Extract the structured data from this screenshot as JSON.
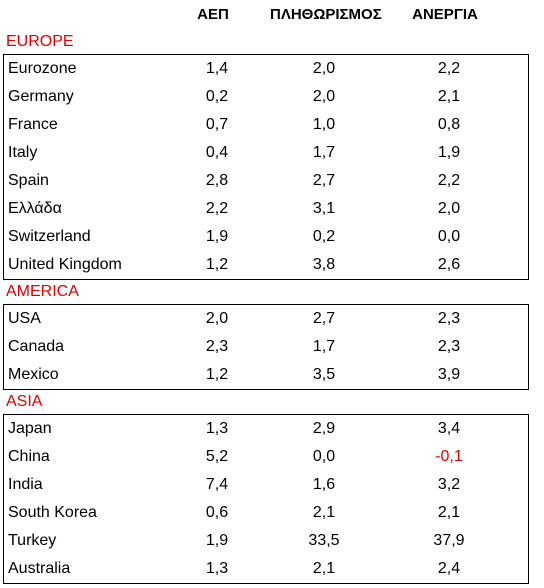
{
  "columns": [
    "ΑΕΠ",
    "ΠΛΗΘΩΡΙΣΜΟΣ",
    "ΑΝΕΡΓΙΑ"
  ],
  "colors": {
    "region_label": "#e30000",
    "negative_value": "#e30000",
    "text": "#000000",
    "border": "#000000"
  },
  "groups": [
    {
      "region": "EUROPE",
      "rows": [
        {
          "name": "Eurozone",
          "values": [
            "1,4",
            "2,0",
            "2,2"
          ]
        },
        {
          "name": "Germany",
          "values": [
            "0,2",
            "2,0",
            "2,1"
          ]
        },
        {
          "name": "France",
          "values": [
            "0,7",
            "1,0",
            "0,8"
          ]
        },
        {
          "name": "Italy",
          "values": [
            "0,4",
            "1,7",
            "1,9"
          ]
        },
        {
          "name": "Spain",
          "values": [
            "2,8",
            "2,7",
            "2,2"
          ]
        },
        {
          "name": "Ελλάδα",
          "values": [
            "2,2",
            "3,1",
            "2,0"
          ]
        },
        {
          "name": "Switzerland",
          "values": [
            "1,9",
            "0,2",
            "0,0"
          ]
        },
        {
          "name": "United Kingdom",
          "values": [
            "1,2",
            "3,8",
            "2,6"
          ]
        }
      ]
    },
    {
      "region": "AMERICA",
      "rows": [
        {
          "name": "USA",
          "values": [
            "2,0",
            "2,7",
            "2,3"
          ]
        },
        {
          "name": "Canada",
          "values": [
            "2,3",
            "1,7",
            "2,3"
          ]
        },
        {
          "name": "Mexico",
          "values": [
            "1,2",
            "3,5",
            "3,9"
          ]
        }
      ]
    },
    {
      "region": "ASIA",
      "rows": [
        {
          "name": "Japan",
          "values": [
            "1,3",
            "2,9",
            "3,4"
          ]
        },
        {
          "name": "China",
          "values": [
            "5,2",
            "0,0",
            "-0,1"
          ]
        },
        {
          "name": "India",
          "values": [
            "7,4",
            "1,6",
            "3,2"
          ]
        },
        {
          "name": "South Korea",
          "values": [
            "0,6",
            "2,1",
            "2,1"
          ]
        },
        {
          "name": "Turkey",
          "values": [
            "1,9",
            "33,5",
            "37,9"
          ]
        },
        {
          "name": "Australia",
          "values": [
            "1,3",
            "2,1",
            "2,4"
          ]
        }
      ]
    }
  ]
}
